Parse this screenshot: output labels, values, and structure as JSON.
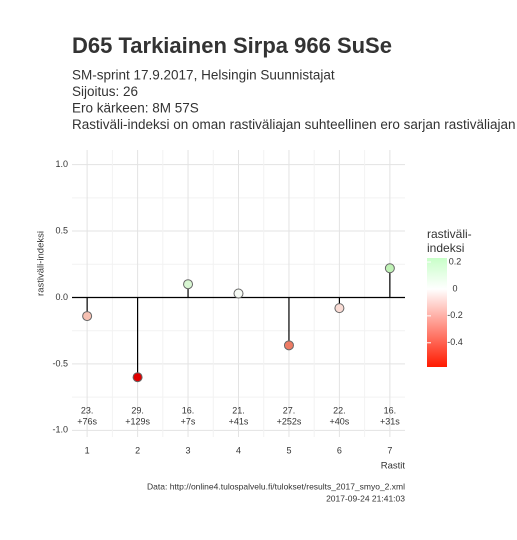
{
  "chart_data": {
    "type": "lollipop",
    "title": "D65 Tarkiainen Sirpa 966 SuSe",
    "subtitle": [
      "SM-sprint 17.9.2017, Helsingin Suunnistajat",
      "Sijoitus: 26",
      "Ero kärkeen: 8M 57S",
      "Rastiväli-indeksi on oman rastiväliajan suhteellinen ero sarjan rastiväliajan kes"
    ],
    "x": [
      1,
      2,
      3,
      4,
      5,
      6,
      7
    ],
    "values": [
      -0.14,
      -0.6,
      0.1,
      0.03,
      -0.36,
      -0.08,
      0.22
    ],
    "colors": [
      "#f6c0b2",
      "#e00000",
      "#d8f6d2",
      "#f6faf4",
      "#ee7b64",
      "#f9dbd4",
      "#bff2b5"
    ],
    "point_labels": [
      [
        "23.",
        "+76s"
      ],
      [
        "29.",
        "+129s"
      ],
      [
        "16.",
        "+7s"
      ],
      [
        "21.",
        "+41s"
      ],
      [
        "27.",
        "+252s"
      ],
      [
        "22.",
        "+40s"
      ],
      [
        "16.",
        "+31s"
      ]
    ],
    "xlim": [
      0.7,
      7.3
    ],
    "xticks": [
      1,
      2,
      3,
      4,
      5,
      6,
      7
    ],
    "ylim": [
      -1.05,
      1.11
    ],
    "yticks": [
      {
        "value": -1,
        "label": "-1.0"
      },
      -0.5,
      {
        "value": 0,
        "label": "0.0"
      },
      0.5,
      {
        "value": 1,
        "label": "1.0"
      }
    ],
    "xlabel": "Rastit",
    "ylabel": "rastiväli-indeksi",
    "grid": true,
    "legend": {
      "title": [
        "rastiväli-",
        "indeksi"
      ],
      "lim": [
        -0.58,
        0.23
      ],
      "ticks": [
        0.2,
        {
          "value": 0,
          "label": "0"
        },
        -0.2,
        -0.4
      ],
      "colors": {
        "low": "#ff1a00",
        "mid": "#ffffff",
        "high": "#c8ffc8"
      }
    },
    "caption": [
      "Data: http://online4.tulospalvelu.fi/tulokset/results_2017_smyo_2.xml",
      "2017-09-24 21:41:03"
    ]
  }
}
